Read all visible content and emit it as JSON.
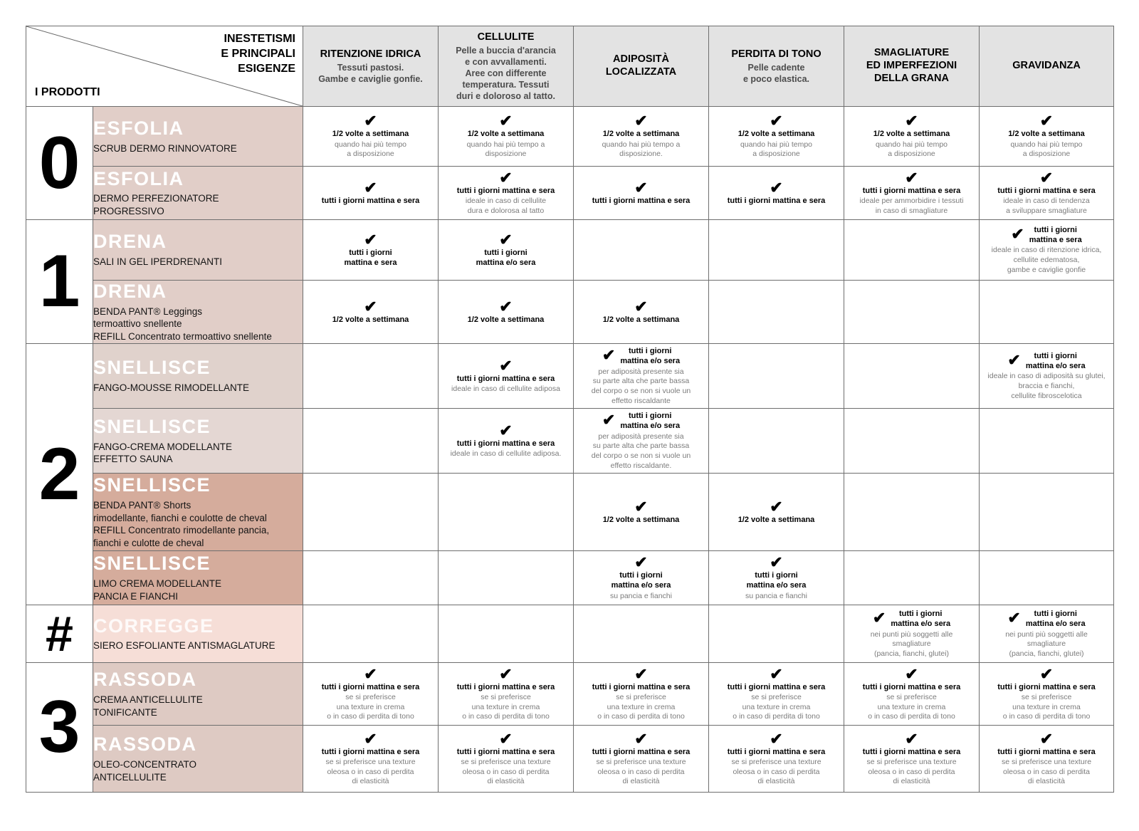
{
  "header": {
    "corner_top": "INESTETISMI\nE PRINCIPALI\nESIGENZE",
    "corner_bottom": "I PRODOTTI"
  },
  "colors": {
    "header_bg": "#e3e3e3",
    "border": "#6e6e6e",
    "label_pink": "#e1cec8",
    "label_pink_light1": "#e0d2cc",
    "label_pink_light2": "#e4d7d3",
    "label_salmon_dark": "#d5ac9c",
    "label_corregge": "#f6ded7",
    "label_rassoda": "#decac3"
  },
  "columns": [
    {
      "title": "RITENZIONE IDRICA",
      "desc": "Tessuti pastosi.\nGambe e caviglie gonfie."
    },
    {
      "title": "CELLULITE",
      "desc": "Pelle a buccia d'arancia\ne con avvallamenti.\nAree con differente\ntemperatura. Tessuti\nduri e doloroso al tatto."
    },
    {
      "title": "ADIPOSITÀ\nLOCALIZZATA",
      "desc": ""
    },
    {
      "title": "PERDITA DI TONO",
      "desc": "Pelle cadente\ne poco elastica."
    },
    {
      "title": "SMAGLIATURE\nED IMPERFEZIONI\nDELLA GRANA",
      "desc": ""
    },
    {
      "title": "GRAVIDANZA",
      "desc": ""
    }
  ],
  "checkmark": "✔",
  "rows": [
    {
      "group": {
        "label": "0",
        "span": 2
      },
      "product": {
        "title": "ESFOLIA",
        "subtitle": "SCRUB DERMO RINNOVATORE"
      },
      "label_bg": "#e1cec8",
      "cells": [
        {
          "check": true,
          "pos": "top",
          "freq": "1/2 volte a settimana",
          "note": "quando hai più tempo\na disposizione"
        },
        {
          "check": true,
          "pos": "top",
          "freq": "1/2 volte a settimana",
          "note": "quando hai più tempo a\ndisposizione"
        },
        {
          "check": true,
          "pos": "top",
          "freq": "1/2 volte a settimana",
          "note": "quando hai più tempo a\ndisposizione."
        },
        {
          "check": true,
          "pos": "top",
          "freq": "1/2 volte a settimana",
          "note": "quando hai più tempo\na disposizione"
        },
        {
          "check": true,
          "pos": "top",
          "freq": "1/2 volte a settimana",
          "note": "quando hai più tempo\na disposizione"
        },
        {
          "check": true,
          "pos": "top",
          "freq": "1/2 volte a settimana",
          "note": "quando hai più tempo\na disposizione"
        }
      ]
    },
    {
      "product": {
        "title": "ESFOLIA",
        "subtitle": "DERMO PERFEZIONATORE\nPROGRESSIVO"
      },
      "label_bg": "#e1cec8",
      "cells": [
        {
          "check": true,
          "pos": "top",
          "freq": "tutti i giorni mattina e sera",
          "note": ""
        },
        {
          "check": true,
          "pos": "top",
          "freq": "tutti i giorni mattina e sera",
          "note": "ideale in caso di cellulite\ndura e dolorosa al tatto"
        },
        {
          "check": true,
          "pos": "top",
          "freq": "tutti i giorni mattina e sera",
          "note": ""
        },
        {
          "check": true,
          "pos": "top",
          "freq": "tutti i giorni mattina e sera",
          "note": ""
        },
        {
          "check": true,
          "pos": "top",
          "freq": "tutti i giorni mattina e sera",
          "note": "ideale per ammorbidire i tessuti\nin caso di smagliature"
        },
        {
          "check": true,
          "pos": "top",
          "freq": "tutti i giorni mattina e sera",
          "note": "ideale in caso di tendenza\na sviluppare smagliature"
        }
      ]
    },
    {
      "group": {
        "label": "1",
        "span": 2
      },
      "product": {
        "title": "DRENA",
        "subtitle": "SALI IN GEL IPERDRENANTI"
      },
      "label_bg": "#e1cec8",
      "cells": [
        {
          "check": true,
          "pos": "top",
          "freq": "tutti i giorni\nmattina e sera",
          "note": ""
        },
        {
          "check": true,
          "pos": "top",
          "freq": "tutti i giorni\nmattina e/o sera",
          "note": ""
        },
        null,
        null,
        null,
        {
          "check": true,
          "pos": "left",
          "freq": "tutti i giorni\nmattina e sera",
          "note": "ideale in caso di ritenzione idrica,\ncellulite edematosa,\ngambe e caviglie gonfie"
        }
      ]
    },
    {
      "product": {
        "title": "DRENA",
        "subtitle": "BENDA PANT® Leggings\ntermoattivo snellente\nREFILL Concentrato termoattivo snellente"
      },
      "label_bg": "#e1cec8",
      "cells": [
        {
          "check": true,
          "pos": "top",
          "freq": "1/2 volte a settimana",
          "note": ""
        },
        {
          "check": true,
          "pos": "top",
          "freq": "1/2 volte a settimana",
          "note": ""
        },
        {
          "check": true,
          "pos": "top",
          "freq": "1/2 volte a settimana",
          "note": ""
        },
        null,
        null,
        null
      ]
    },
    {
      "group": {
        "label": "2",
        "span": 4
      },
      "product": {
        "title": "SNELLISCE",
        "subtitle": "FANGO-MOUSSE RIMODELLANTE"
      },
      "label_bg": "#e0d2cc",
      "cells": [
        null,
        {
          "check": true,
          "pos": "top",
          "freq": "tutti i giorni mattina e sera",
          "note": "ideale in caso di cellulite adiposa"
        },
        {
          "check": true,
          "pos": "left",
          "freq": "tutti i giorni\nmattina e/o sera",
          "note": "per adiposità presente sia\nsu parte alta che parte bassa\ndel corpo o se non si vuole un\neffetto riscaldante"
        },
        null,
        null,
        {
          "check": true,
          "pos": "left",
          "freq": "tutti i giorni\nmattina e/o sera",
          "note": "ideale in caso di adiposità su glutei,\nbraccia e fianchi,\ncellulite fibroscelotica"
        }
      ]
    },
    {
      "product": {
        "title": "SNELLISCE",
        "subtitle": "FANGO-CREMA MODELLANTE\nEFFETTO SAUNA"
      },
      "label_bg": "#e4d7d3",
      "cells": [
        null,
        {
          "check": true,
          "pos": "top",
          "freq": "tutti i giorni mattina e sera",
          "note": "ideale in caso di cellulite adiposa."
        },
        {
          "check": true,
          "pos": "left",
          "freq": "tutti i giorni\nmattina e/o sera",
          "note": "per adiposità presente sia\nsu parte alta che parte bassa\ndel corpo o se non si vuole un\neffetto riscaldante."
        },
        null,
        null,
        null
      ]
    },
    {
      "product": {
        "title": "SNELLISCE",
        "subtitle": "BENDA PANT® Shorts\nrimodellante, fianchi e coulotte de cheval\nREFILL Concentrato rimodellante pancia,\nfianchi e culotte de cheval"
      },
      "label_bg": "#d5ac9c",
      "cells": [
        null,
        null,
        {
          "check": true,
          "pos": "top",
          "freq": "1/2 volte a settimana",
          "note": ""
        },
        {
          "check": true,
          "pos": "top",
          "freq": "1/2 volte a settimana",
          "note": ""
        },
        null,
        null
      ]
    },
    {
      "product": {
        "title": "SNELLISCE",
        "subtitle": "LIMO CREMA MODELLANTE\nPANCIA E FIANCHI"
      },
      "label_bg": "#d5ac9c",
      "cells": [
        null,
        null,
        {
          "check": true,
          "pos": "top",
          "freq": "tutti i giorni\nmattina e/o sera",
          "note": "su pancia e fianchi"
        },
        {
          "check": true,
          "pos": "top",
          "freq": "tutti i giorni\nmattina e/o sera",
          "note": "su pancia e fianchi"
        },
        null,
        null
      ]
    },
    {
      "group": {
        "label": "#",
        "span": 1
      },
      "product": {
        "title": "CORREGGE",
        "subtitle": "SIERO ESFOLIANTE ANTISMAGLATURE",
        "pale_title": true
      },
      "label_bg": "#f6ded7",
      "cells": [
        null,
        null,
        null,
        null,
        {
          "check": true,
          "pos": "left",
          "freq": "tutti i giorni\nmattina e/o sera",
          "note": "nei punti più soggetti alle\nsmagliature\n(pancia, fianchi, glutei)"
        },
        {
          "check": true,
          "pos": "left",
          "freq": "tutti i giorni\nmattina e/o sera",
          "note": "nei punti più soggetti alle\nsmagliature\n(pancia, fianchi, glutei)"
        }
      ]
    },
    {
      "group": {
        "label": "3",
        "span": 2
      },
      "product": {
        "title": "RASSODA",
        "subtitle": "CREMA ANTICELLULITE\nTONIFICANTE"
      },
      "label_bg": "#decac3",
      "cells": [
        {
          "check": true,
          "pos": "top",
          "freq": "tutti i giorni mattina e sera",
          "note": "se si preferisce\nuna texture in crema\no in caso di perdita di tono"
        },
        {
          "check": true,
          "pos": "top",
          "freq": "tutti i giorni mattina e sera",
          "note": "se si preferisce\nuna texture in crema\no in caso di perdita di tono"
        },
        {
          "check": true,
          "pos": "top",
          "freq": "tutti i giorni mattina e sera",
          "note": "se si preferisce\nuna texture in crema\no in caso di perdita di tono"
        },
        {
          "check": true,
          "pos": "top",
          "freq": "tutti i giorni mattina e sera",
          "note": "se si preferisce\nuna texture in crema\no in caso di perdita di tono"
        },
        {
          "check": true,
          "pos": "top",
          "freq": "tutti i giorni mattina e sera",
          "note": "se si preferisce\nuna texture in crema\no in caso di perdita di tono"
        },
        {
          "check": true,
          "pos": "top",
          "freq": "tutti i giorni mattina e sera",
          "note": "se si preferisce\nuna texture in crema\no in caso di perdita di tono"
        }
      ]
    },
    {
      "product": {
        "title": "RASSODA",
        "subtitle": "OLEO-CONCENTRATO\nANTICELLULITE"
      },
      "label_bg": "#decac3",
      "cells": [
        {
          "check": true,
          "pos": "top",
          "freq": "tutti i giorni mattina e sera",
          "note": "se si preferisce una texture\noleosa o in caso di perdita\ndi elasticità"
        },
        {
          "check": true,
          "pos": "top",
          "freq": "tutti i giorni mattina e sera",
          "note": "se si preferisce una texture\noleosa o in caso di perdita\ndi elasticità"
        },
        {
          "check": true,
          "pos": "top",
          "freq": "tutti i giorni mattina e sera",
          "note": "se si preferisce una texture\noleosa o in caso di perdita\ndi elasticità"
        },
        {
          "check": true,
          "pos": "top",
          "freq": "tutti i giorni mattina e sera",
          "note": "se si preferisce una texture\noleosa o in caso di perdita\ndi elasticità"
        },
        {
          "check": true,
          "pos": "top",
          "freq": "tutti i giorni mattina e sera",
          "note": "se si preferisce una texture\noleosa o in caso di perdita\ndi elasticità"
        },
        {
          "check": true,
          "pos": "top",
          "freq": "tutti i giorni mattina e sera",
          "note": "se si preferisce una texture\noleosa o in caso di perdita\ndi elasticità"
        }
      ]
    }
  ]
}
